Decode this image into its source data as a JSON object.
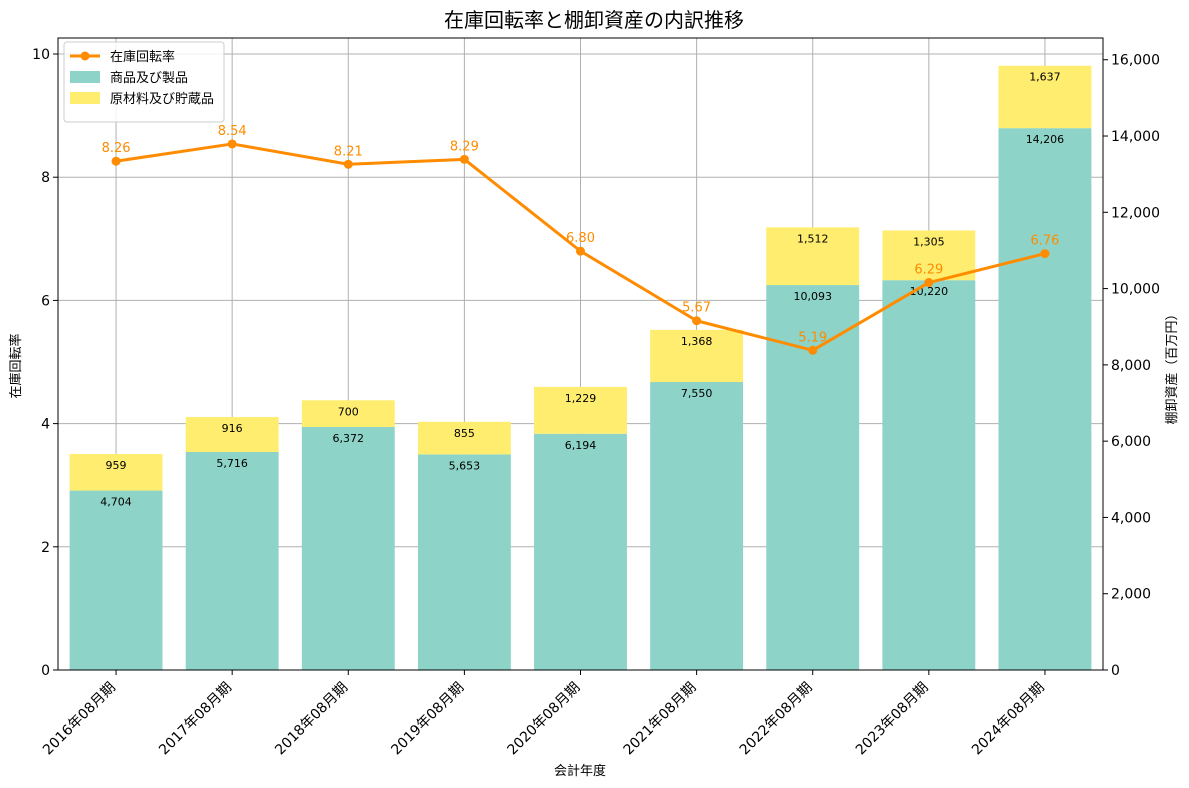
{
  "chart_data": {
    "type": "bar",
    "title": "在庫回転率と棚卸資産の内訳推移",
    "xlabel": "会計年度",
    "ylabel_left": "在庫回転率",
    "ylabel_right": "棚卸資産（百万円）",
    "categories": [
      "2016年08月期",
      "2017年08月期",
      "2018年08月期",
      "2019年08月期",
      "2020年08月期",
      "2021年08月期",
      "2022年08月期",
      "2023年08月期",
      "2024年08月期"
    ],
    "series": [
      {
        "name": "商品及び製品",
        "kind": "bar",
        "axis": "right",
        "color": "#8dd3c7",
        "values": [
          4704,
          5716,
          6372,
          5653,
          6194,
          7550,
          10093,
          10220,
          14206
        ],
        "labels": [
          "4,704",
          "5,716",
          "6,372",
          "5,653",
          "6,194",
          "7,550",
          "10,093",
          "10,220",
          "14,206"
        ]
      },
      {
        "name": "原材料及び貯蔵品",
        "kind": "bar",
        "axis": "right",
        "color": "#ffed6f",
        "values": [
          959,
          916,
          700,
          855,
          1229,
          1368,
          1512,
          1305,
          1637
        ],
        "labels": [
          "959",
          "916",
          "700",
          "855",
          "1,229",
          "1,368",
          "1,512",
          "1,305",
          "1,637"
        ]
      },
      {
        "name": "在庫回転率",
        "kind": "line",
        "axis": "left",
        "color": "#ff8c00",
        "values": [
          8.26,
          8.54,
          8.21,
          8.29,
          6.8,
          5.67,
          5.19,
          6.29,
          6.76
        ],
        "labels": [
          "8.26",
          "8.54",
          "8.21",
          "8.29",
          "6.80",
          "5.67",
          "5.19",
          "6.29",
          "6.76"
        ]
      }
    ],
    "ylim_left": [
      0,
      10.26
    ],
    "ylim_right": [
      0,
      16570
    ],
    "yticks_left": [
      0,
      2,
      4,
      6,
      8,
      10
    ],
    "yticks_left_labels": [
      "0",
      "2",
      "4",
      "6",
      "8",
      "10"
    ],
    "yticks_right": [
      0,
      2000,
      4000,
      6000,
      8000,
      10000,
      12000,
      14000,
      16000
    ],
    "yticks_right_labels": [
      "0",
      "2,000",
      "4,000",
      "6,000",
      "8,000",
      "10,000",
      "12,000",
      "14,000",
      "16,000"
    ],
    "legend_position": "top-left",
    "grid": true
  }
}
